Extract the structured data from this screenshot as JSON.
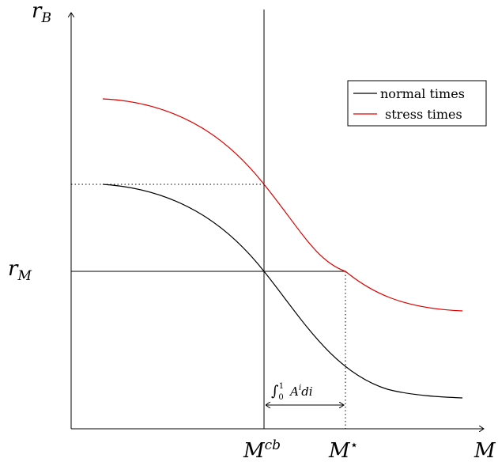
{
  "axes": {
    "y_label_main": "r",
    "y_label_sub": "B",
    "x_label": "M",
    "r_m_main": "r",
    "r_m_sub": "M"
  },
  "markers": {
    "m_cb_main": "M",
    "m_cb_sup": "cb",
    "m_star_main": "M",
    "m_star_sup": "⋆"
  },
  "annotation": {
    "integral": "∫",
    "lower": "0",
    "upper": "1",
    "body": "A",
    "body_sup": "i",
    "tail": "di"
  },
  "legend": {
    "normal": "normal times",
    "stress": "stress times"
  },
  "colors": {
    "normal": "#000000",
    "stress": "#e00000"
  }
}
